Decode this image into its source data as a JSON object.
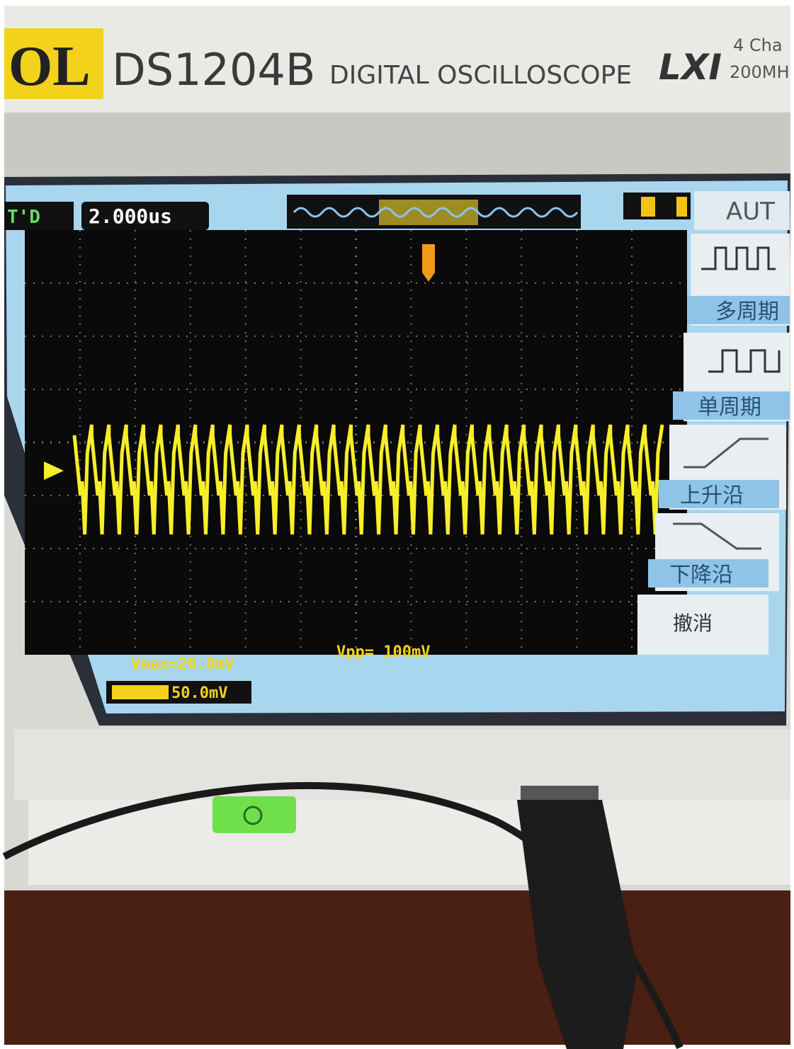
{
  "header": {
    "brand": "OL",
    "model": "DS1204B",
    "description": "DIGITAL OSCILLOSCOPE",
    "lxi": "LXI",
    "channels": "4 Cha",
    "bandwidth": "200MH"
  },
  "screen": {
    "trigger_mode": "T'D",
    "timebase": "2.000us",
    "channel_scale": "50.0mV",
    "measurements": [
      "Vmax=20.0mV",
      "Vpp= 100mV"
    ]
  },
  "menu": {
    "title": "AUT",
    "items": [
      "多周期",
      "单周期",
      "上升沿",
      "下降沿",
      "撤消"
    ]
  }
}
